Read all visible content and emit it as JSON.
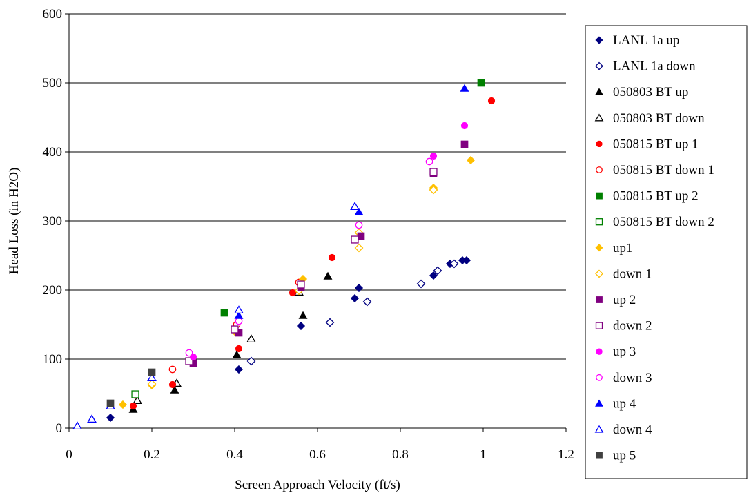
{
  "chart_data": {
    "type": "scatter",
    "title": "",
    "xlabel": "Screen Approach Velocity (ft/s)",
    "ylabel": "Head Loss (in H2O)",
    "xlim": [
      0,
      1.2
    ],
    "ylim": [
      0,
      600
    ],
    "x_ticks": [
      "0",
      "0.2",
      "0.4",
      "0.6",
      "0.8",
      "1",
      "1.2"
    ],
    "y_ticks": [
      "0",
      "100",
      "200",
      "300",
      "400",
      "500",
      "600"
    ],
    "grid": "horizontal",
    "legend_position": "right",
    "series": [
      {
        "name": "LANL 1a up",
        "color": "#000080",
        "marker": "diamond",
        "filled": true,
        "points": [
          [
            0.1,
            15
          ],
          [
            0.41,
            85
          ],
          [
            0.56,
            148
          ],
          [
            0.69,
            188
          ],
          [
            0.7,
            203
          ],
          [
            0.88,
            221
          ],
          [
            0.92,
            238
          ],
          [
            0.95,
            243
          ],
          [
            0.96,
            243
          ]
        ]
      },
      {
        "name": "LANL 1a down",
        "color": "#000080",
        "marker": "diamond",
        "filled": false,
        "points": [
          [
            0.44,
            97
          ],
          [
            0.63,
            153
          ],
          [
            0.72,
            183
          ],
          [
            0.85,
            209
          ],
          [
            0.89,
            228
          ],
          [
            0.93,
            238
          ]
        ]
      },
      {
        "name": "050803 BT up",
        "color": "#000000",
        "marker": "triangle",
        "filled": true,
        "points": [
          [
            0.155,
            27
          ],
          [
            0.255,
            55
          ],
          [
            0.405,
            106
          ],
          [
            0.565,
            163
          ],
          [
            0.625,
            220
          ]
        ]
      },
      {
        "name": "050803 BT down",
        "color": "#000000",
        "marker": "triangle",
        "filled": false,
        "points": [
          [
            0.165,
            40
          ],
          [
            0.26,
            65
          ],
          [
            0.44,
            129
          ],
          [
            0.555,
            197
          ]
        ]
      },
      {
        "name": "050815 BT up 1",
        "color": "#ff0000",
        "marker": "circle",
        "filled": true,
        "points": [
          [
            0.155,
            32
          ],
          [
            0.25,
            63
          ],
          [
            0.41,
            115
          ],
          [
            0.54,
            196
          ],
          [
            0.635,
            247
          ],
          [
            1.02,
            474
          ]
        ]
      },
      {
        "name": "050815 BT down 1",
        "color": "#ff0000",
        "marker": "circle",
        "filled": false,
        "points": [
          [
            0.16,
            48
          ],
          [
            0.25,
            85
          ],
          [
            0.405,
            150
          ],
          [
            0.555,
            211
          ]
        ]
      },
      {
        "name": "050815 BT up 2",
        "color": "#008000",
        "marker": "square",
        "filled": true,
        "points": [
          [
            0.375,
            167
          ],
          [
            0.995,
            500
          ]
        ]
      },
      {
        "name": "050815 BT down 2",
        "color": "#008000",
        "marker": "square",
        "filled": false,
        "points": [
          [
            0.16,
            49
          ]
        ]
      },
      {
        "name": "up1",
        "color": "#ffc000",
        "marker": "diamond",
        "filled": true,
        "points": [
          [
            0.13,
            34
          ],
          [
            0.2,
            62
          ],
          [
            0.4,
            140
          ],
          [
            0.565,
            216
          ],
          [
            0.88,
            348
          ],
          [
            0.97,
            388
          ]
        ]
      },
      {
        "name": "down 1",
        "color": "#ffc000",
        "marker": "diamond",
        "filled": false,
        "points": [
          [
            0.2,
            64
          ],
          [
            0.555,
            199
          ],
          [
            0.7,
            261
          ],
          [
            0.7,
            283
          ],
          [
            0.88,
            345
          ]
        ]
      },
      {
        "name": "up 2",
        "color": "#800080",
        "marker": "square",
        "filled": true,
        "points": [
          [
            0.3,
            94
          ],
          [
            0.41,
            138
          ],
          [
            0.56,
            204
          ],
          [
            0.705,
            278
          ],
          [
            0.88,
            369
          ],
          [
            0.955,
            411
          ]
        ]
      },
      {
        "name": "down 2",
        "color": "#800080",
        "marker": "square",
        "filled": false,
        "points": [
          [
            0.29,
            97
          ],
          [
            0.4,
            143
          ],
          [
            0.56,
            208
          ],
          [
            0.69,
            273
          ],
          [
            0.88,
            371
          ]
        ]
      },
      {
        "name": "up 3",
        "color": "#ff00ff",
        "marker": "circle",
        "filled": true,
        "points": [
          [
            0.3,
            103
          ],
          [
            0.88,
            394
          ],
          [
            0.955,
            438
          ]
        ]
      },
      {
        "name": "down 3",
        "color": "#ff00ff",
        "marker": "circle",
        "filled": false,
        "points": [
          [
            0.29,
            109
          ],
          [
            0.41,
            155
          ],
          [
            0.7,
            294
          ],
          [
            0.87,
            386
          ]
        ]
      },
      {
        "name": "up 4",
        "color": "#0000ff",
        "marker": "triangle",
        "filled": true,
        "points": [
          [
            0.41,
            163
          ],
          [
            0.7,
            313
          ],
          [
            0.955,
            492
          ]
        ]
      },
      {
        "name": "down 4",
        "color": "#0000ff",
        "marker": "triangle",
        "filled": false,
        "points": [
          [
            0.02,
            3
          ],
          [
            0.055,
            13
          ],
          [
            0.1,
            32
          ],
          [
            0.2,
            73
          ],
          [
            0.41,
            171
          ],
          [
            0.69,
            321
          ]
        ]
      },
      {
        "name": "up 5",
        "color": "#404040",
        "marker": "square",
        "filled": true,
        "points": [
          [
            0.1,
            36
          ],
          [
            0.2,
            81
          ]
        ]
      }
    ]
  }
}
